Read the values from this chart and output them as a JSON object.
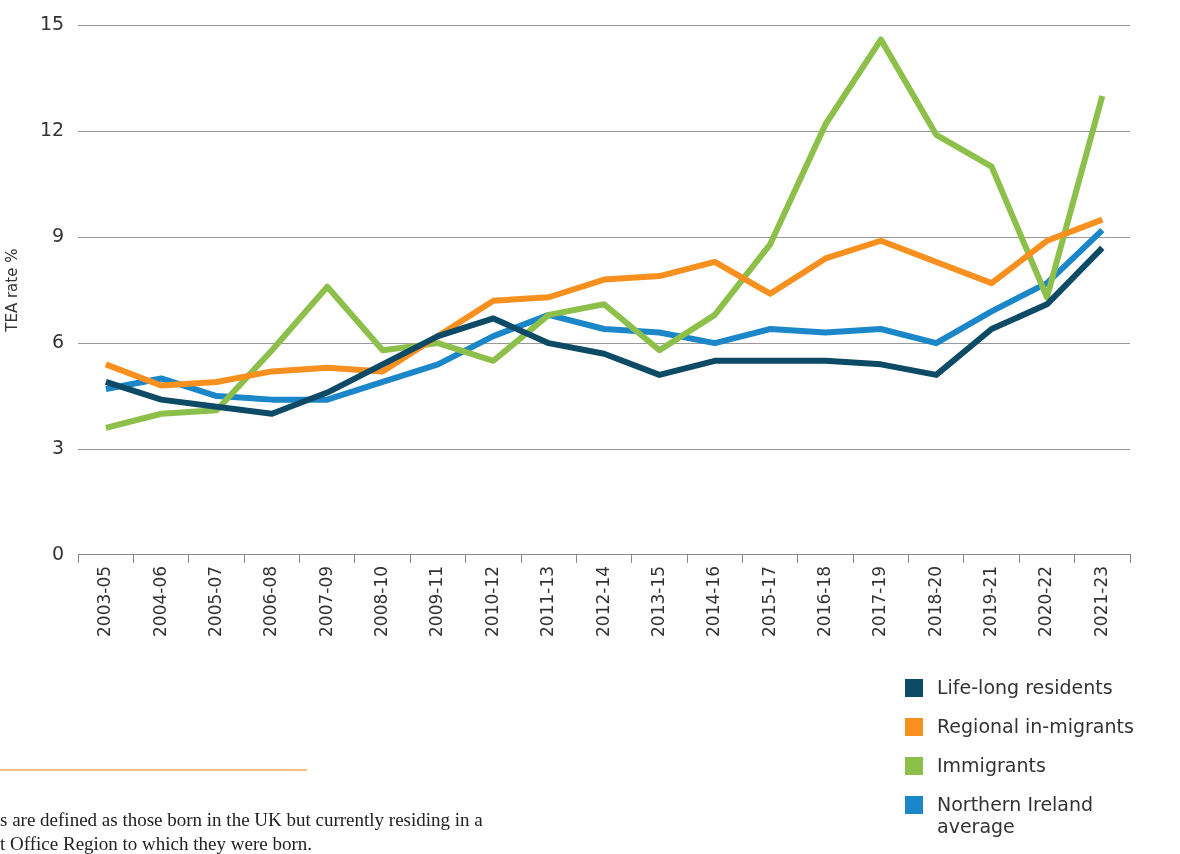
{
  "chart_data": {
    "type": "line",
    "ylabel": "TEA rate %",
    "categories": [
      "2003-05",
      "2004-06",
      "2005-07",
      "2006-08",
      "2007-09",
      "2008-10",
      "2009-11",
      "2010-12",
      "2011-13",
      "2012-14",
      "2013-15",
      "2014-16",
      "2015-17",
      "2016-18",
      "2017-19",
      "2018-20",
      "2019-21",
      "2020-22",
      "2021-23"
    ],
    "series": [
      {
        "name": "Life-long residents",
        "color": "#0d4a66",
        "values": [
          4.9,
          4.4,
          4.2,
          4.0,
          4.6,
          5.4,
          6.2,
          6.7,
          6.0,
          5.7,
          5.1,
          5.5,
          5.5,
          5.5,
          5.4,
          5.1,
          6.4,
          7.1,
          8.7
        ]
      },
      {
        "name": "Regional in-migrants",
        "color": "#f7901e",
        "values": [
          5.4,
          4.8,
          4.9,
          5.2,
          5.3,
          5.2,
          6.2,
          7.2,
          7.3,
          7.8,
          7.9,
          8.3,
          7.4,
          8.4,
          8.9,
          8.3,
          7.7,
          8.9,
          9.5
        ]
      },
      {
        "name": "Immigrants",
        "color": "#8cc04b",
        "values": [
          3.6,
          4.0,
          4.1,
          5.8,
          7.6,
          5.8,
          6.0,
          5.5,
          6.8,
          7.1,
          5.8,
          6.8,
          8.8,
          12.2,
          14.6,
          11.9,
          11.0,
          7.3,
          13.0
        ]
      },
      {
        "name": "Northern Ireland average",
        "color": "#1b87c9",
        "values": [
          4.7,
          5.0,
          4.5,
          4.4,
          4.4,
          4.9,
          5.4,
          6.2,
          6.8,
          6.4,
          6.3,
          6.0,
          6.4,
          6.3,
          6.4,
          6.0,
          6.9,
          7.7,
          9.2
        ]
      }
    ],
    "ylim": [
      0,
      15
    ],
    "yticks": [
      0,
      3,
      6,
      9,
      12,
      15
    ],
    "grid": "y",
    "legend": "bottom right",
    "marker": "none",
    "line_style": "solid",
    "annotations": [
      "s are defined as those born in the UK but currently residing in a",
      "t Office Region to which they were born."
    ]
  }
}
